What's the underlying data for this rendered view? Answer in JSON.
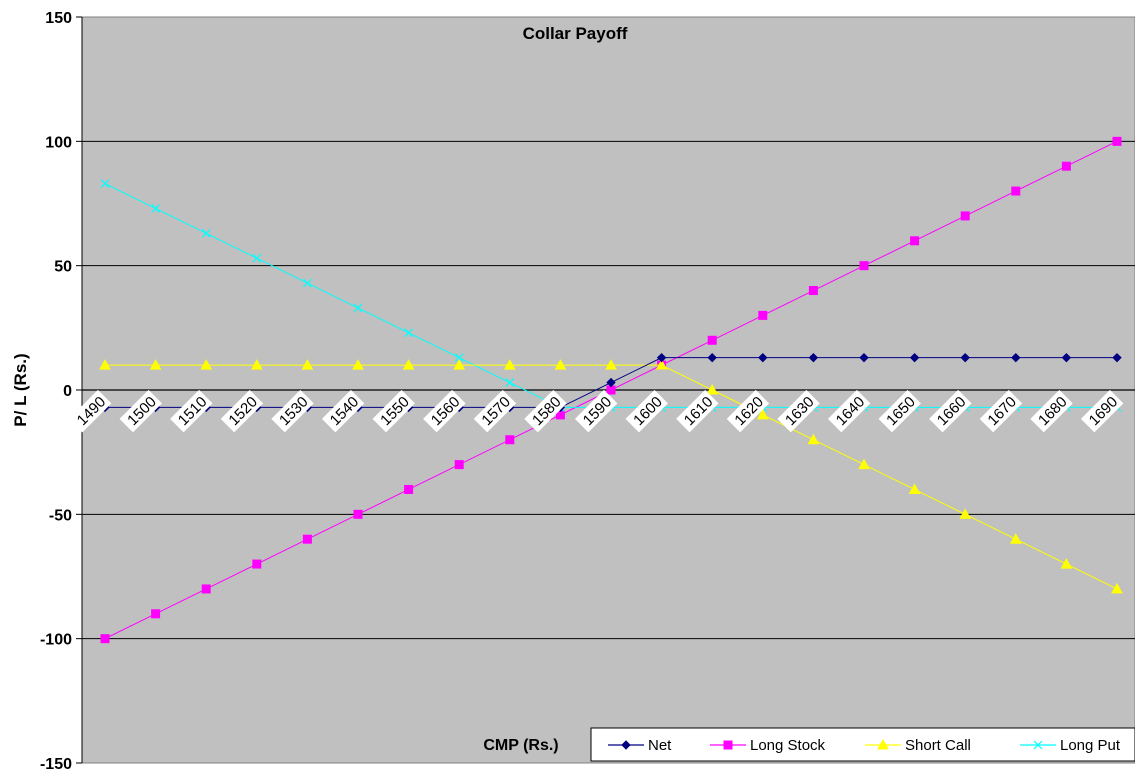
{
  "chart_data": {
    "type": "line",
    "title": "Collar Payoff",
    "xlabel": "CMP (Rs.)",
    "ylabel": "P/ L (Rs.)",
    "ylim": [
      -150,
      150
    ],
    "yticks": [
      150,
      100,
      50,
      0,
      -50,
      -100,
      -150
    ],
    "categories": [
      "1490",
      "1500",
      "1510",
      "1520",
      "1530",
      "1540",
      "1550",
      "1560",
      "1570",
      "1580",
      "1590",
      "1600",
      "1610",
      "1620",
      "1630",
      "1640",
      "1650",
      "1660",
      "1670",
      "1680",
      "1690"
    ],
    "grid": "horizontal",
    "legend_position": "bottom-right",
    "series": [
      {
        "name": "Net",
        "color": "#000080",
        "marker": "diamond",
        "values": [
          -7,
          -7,
          -7,
          -7,
          -7,
          -7,
          -7,
          -7,
          -7,
          -7,
          3,
          13,
          13,
          13,
          13,
          13,
          13,
          13,
          13,
          13,
          13
        ]
      },
      {
        "name": "Long Stock",
        "color": "#ff00ff",
        "marker": "square",
        "values": [
          -100,
          -90,
          -80,
          -70,
          -60,
          -50,
          -40,
          -30,
          -20,
          -10,
          0,
          10,
          20,
          30,
          40,
          50,
          60,
          70,
          80,
          90,
          100
        ]
      },
      {
        "name": "Short Call",
        "color": "#ffff00",
        "marker": "triangle",
        "values": [
          10,
          10,
          10,
          10,
          10,
          10,
          10,
          10,
          10,
          10,
          10,
          10,
          0,
          -10,
          -20,
          -30,
          -40,
          -50,
          -60,
          -70,
          -80
        ]
      },
      {
        "name": "Long Put",
        "color": "#00ffff",
        "marker": "x",
        "values": [
          83,
          73,
          63,
          53,
          43,
          33,
          23,
          13,
          3,
          -7,
          -7,
          -7,
          -7,
          -7,
          -7,
          -7,
          -7,
          -7,
          -7,
          -7,
          -7
        ]
      }
    ]
  }
}
